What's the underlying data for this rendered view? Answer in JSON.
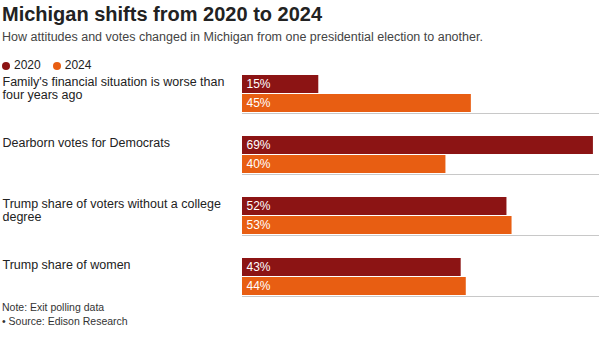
{
  "chart_data": {
    "type": "bar",
    "orientation": "horizontal",
    "title": "Michigan shifts from 2020 to 2024",
    "subtitle": "How attitudes and votes changed in Michigan from one presidential election to another.",
    "categories": [
      "Family's financial situation is worse than four years ago",
      "Dearborn votes for Democrats",
      "Trump share of voters without a college degree",
      "Trump share of women"
    ],
    "series": [
      {
        "name": "2020",
        "color": "#8c1414",
        "values": [
          15,
          69,
          52,
          43
        ],
        "value_labels": [
          "15%",
          "69%",
          "52%",
          "43%"
        ]
      },
      {
        "name": "2024",
        "color": "#e85e12",
        "values": [
          45,
          40,
          53,
          44
        ],
        "value_labels": [
          "45%",
          "40%",
          "53%",
          "44%"
        ]
      }
    ],
    "xlim": [
      0,
      70
    ],
    "tick_labels": false,
    "data_labels": true,
    "legend": "top-left",
    "note": "Note: Exit polling data",
    "source": "• Source: Edison Research"
  }
}
